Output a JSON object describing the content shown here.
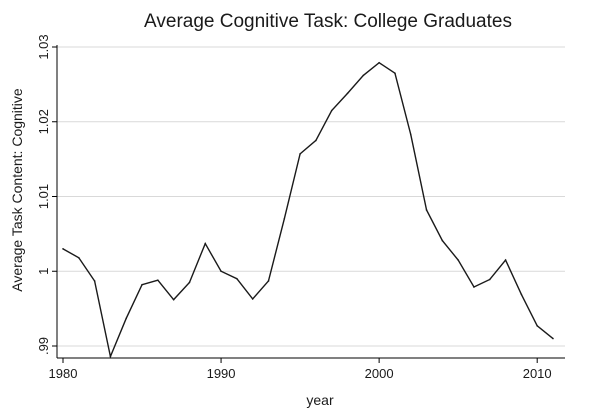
{
  "chart_data": {
    "type": "line",
    "title": "Average Cognitive Task: College Graduates",
    "xlabel": "year",
    "ylabel": "Average Task Content: Cognitive",
    "xlim": [
      1980,
      2011
    ],
    "ylim": [
      0.99,
      1.03
    ],
    "xticks": [
      1980,
      1990,
      2000,
      2010
    ],
    "xtick_labels": [
      "1980",
      "1990",
      "2000",
      "2010"
    ],
    "yticks": [
      0.99,
      1.0,
      1.01,
      1.02,
      1.03
    ],
    "ytick_labels": [
      ".99",
      "1",
      "1.01",
      "1.02",
      "1.03"
    ],
    "grid": "horizontal",
    "line_color": "#1a1a1a",
    "x": [
      1980,
      1981,
      1982,
      1983,
      1984,
      1985,
      1986,
      1987,
      1988,
      1989,
      1990,
      1991,
      1992,
      1993,
      1994,
      1995,
      1996,
      1997,
      1998,
      1999,
      2000,
      2001,
      2002,
      2003,
      2004,
      2005,
      2006,
      2007,
      2008,
      2009,
      2010,
      2011
    ],
    "y": [
      1.003,
      1.0018,
      0.9987,
      0.9886,
      0.9937,
      0.9982,
      0.9988,
      0.9962,
      0.9985,
      1.0037,
      1.0,
      0.999,
      0.9963,
      0.9987,
      1.007,
      1.0157,
      1.0175,
      1.0215,
      1.0238,
      1.0262,
      1.0279,
      1.0265,
      1.0183,
      1.0082,
      1.0041,
      1.0015,
      0.9979,
      0.9989,
      1.0015,
      0.9969,
      0.9927,
      0.991
    ]
  }
}
